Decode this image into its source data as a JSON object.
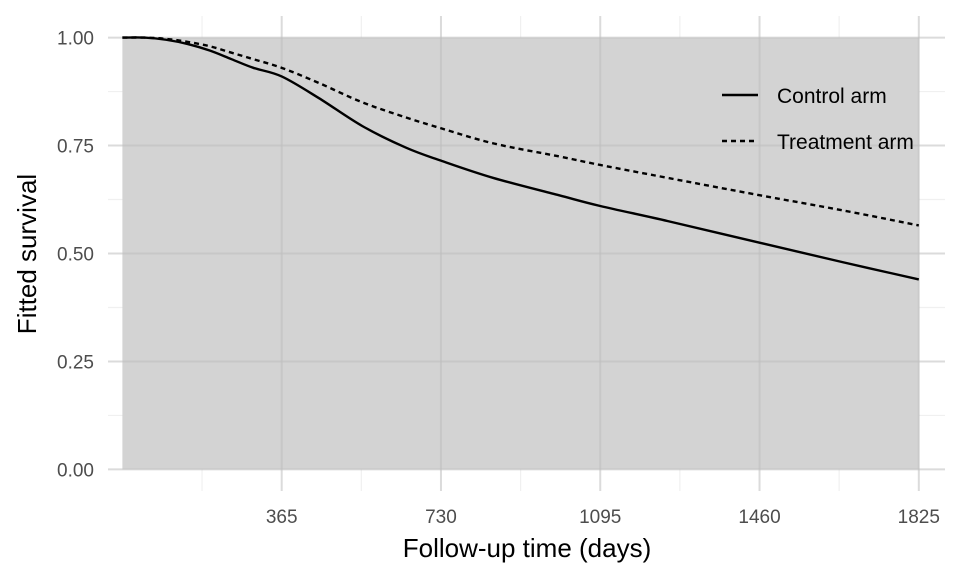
{
  "chart_data": {
    "type": "line",
    "title": "",
    "xlabel": "Follow-up time (days)",
    "ylabel": "Fitted survival",
    "xlim": [
      -33,
      1885
    ],
    "ylim": [
      -0.05,
      1.05
    ],
    "x_ticks": [
      365,
      730,
      1095,
      1460,
      1825
    ],
    "x_tick_labels": [
      "365",
      "730",
      "1095",
      "1460",
      "1825"
    ],
    "y_ticks": [
      0,
      0.25,
      0.5,
      0.75,
      1.0
    ],
    "y_tick_labels": [
      "0.00",
      "0.25",
      "0.50",
      "0.75",
      "1.00"
    ],
    "grid": true,
    "legend_position": "top-right",
    "shaded_band": {
      "x_range": [
        0,
        1825
      ],
      "color": "#d3d3d3"
    },
    "series": [
      {
        "name": "Control arm",
        "line_style": "solid",
        "color": "#000000",
        "x": [
          0,
          50,
          100,
          150,
          200,
          250,
          300,
          365,
          450,
          550,
          650,
          730,
          850,
          1000,
          1095,
          1250,
          1460,
          1650,
          1825
        ],
        "y": [
          1.0,
          1.0,
          0.995,
          0.985,
          0.97,
          0.95,
          0.93,
          0.91,
          0.86,
          0.795,
          0.745,
          0.715,
          0.675,
          0.635,
          0.61,
          0.575,
          0.525,
          0.48,
          0.44
        ]
      },
      {
        "name": "Treatment arm",
        "line_style": "dashed",
        "color": "#000000",
        "x": [
          0,
          50,
          100,
          150,
          200,
          250,
          300,
          365,
          450,
          550,
          650,
          730,
          850,
          1000,
          1095,
          1250,
          1460,
          1650,
          1825
        ],
        "y": [
          1.0,
          1.0,
          0.997,
          0.99,
          0.98,
          0.965,
          0.95,
          0.93,
          0.895,
          0.85,
          0.815,
          0.79,
          0.755,
          0.725,
          0.705,
          0.675,
          0.635,
          0.6,
          0.565
        ]
      }
    ]
  }
}
